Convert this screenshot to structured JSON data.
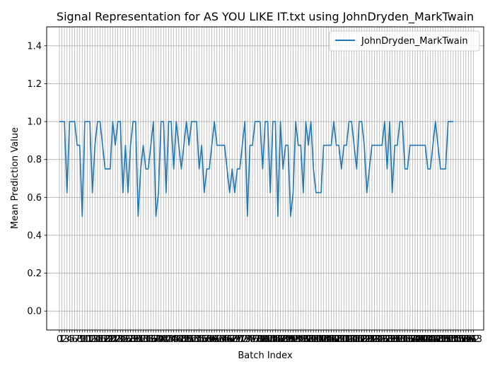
{
  "chart_data": {
    "type": "line",
    "title": "Signal Representation for AS YOU LIKE IT.txt using JohnDryden_MarkTwain",
    "xlabel": "Batch Index",
    "ylabel": "Mean Prediction Value",
    "ylim": [
      -0.1,
      1.5
    ],
    "xlim": [
      -5,
      167
    ],
    "y_ticks": [
      "0.0",
      "0.2",
      "0.4",
      "0.6",
      "0.8",
      "1.0",
      "1.2",
      "1.4"
    ],
    "y_tick_values": [
      0.0,
      0.2,
      0.4,
      0.6,
      0.8,
      1.0,
      1.2,
      1.4
    ],
    "x_tick_first": 0,
    "x_tick_last": 163,
    "x_tick_step": 1,
    "grid": true,
    "legend_position": "top-right",
    "series": [
      {
        "name": "JohnDryden_MarkTwain",
        "color": "#1f77b4",
        "values": [
          1.0,
          1.0,
          1.0,
          0.625,
          1.0,
          1.0,
          1.0,
          0.875,
          0.875,
          0.5,
          1.0,
          1.0,
          1.0,
          0.625,
          0.875,
          1.0,
          1.0,
          0.875,
          0.75,
          0.75,
          0.75,
          1.0,
          0.875,
          1.0,
          1.0,
          0.625,
          0.875,
          0.625,
          0.875,
          1.0,
          1.0,
          0.5,
          0.75,
          0.875,
          0.75,
          0.75,
          0.875,
          1.0,
          0.5,
          0.625,
          1.0,
          1.0,
          0.625,
          1.0,
          1.0,
          0.75,
          1.0,
          0.875,
          0.75,
          0.875,
          1.0,
          0.875,
          1.0,
          1.0,
          1.0,
          0.75,
          0.875,
          0.625,
          0.75,
          0.75,
          0.875,
          1.0,
          0.875,
          0.875,
          0.875,
          0.875,
          0.75,
          0.625,
          0.75,
          0.625,
          0.75,
          0.75,
          0.875,
          1.0,
          0.5,
          0.875,
          0.875,
          1.0,
          1.0,
          1.0,
          0.75,
          1.0,
          1.0,
          0.625,
          1.0,
          1.0,
          0.5,
          1.0,
          0.75,
          0.875,
          0.875,
          0.5,
          0.625,
          1.0,
          0.875,
          0.875,
          0.625,
          1.0,
          0.875,
          1.0,
          0.75,
          0.625,
          0.625,
          0.625,
          0.875,
          0.875,
          0.875,
          0.875,
          1.0,
          0.875,
          0.875,
          0.75,
          0.875,
          0.875,
          1.0,
          1.0,
          0.875,
          0.75,
          1.0,
          1.0,
          0.875,
          0.625,
          0.75,
          0.875,
          0.875,
          0.875,
          0.875,
          0.875,
          1.0,
          0.75,
          1.0,
          0.625,
          0.875,
          0.875,
          1.0,
          1.0,
          0.75,
          0.75,
          0.875,
          0.875,
          0.875,
          0.875,
          0.875,
          0.875,
          0.875,
          0.75,
          0.75,
          0.875,
          1.0,
          0.875,
          0.75,
          0.75,
          0.75,
          1.0,
          1.0,
          1.0
        ]
      }
    ]
  }
}
